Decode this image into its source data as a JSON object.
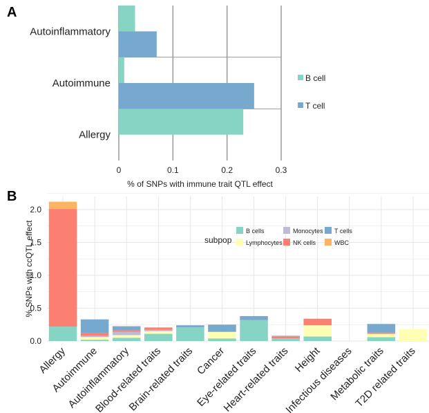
{
  "colors": {
    "b_cell": "#86d4c3",
    "t_cell": "#77a8cd",
    "lymphocytes": "#ffffb3",
    "monocytes": "#bebada",
    "nk_cells": "#fb8072",
    "wbc": "#fdb462",
    "grid_major": "#999999",
    "grid_light": "#e6e6e6"
  },
  "chart_data": [
    {
      "panel": "A",
      "type": "bar",
      "orientation": "horizontal",
      "categories": [
        "Autoinflammatory",
        "Autoimmune",
        "Allergy"
      ],
      "series": [
        {
          "name": "B cell",
          "values": [
            0.03,
            0.01,
            0.23
          ]
        },
        {
          "name": "T cell",
          "values": [
            0.07,
            0.25,
            0
          ]
        }
      ],
      "xlabel": "% of SNPs with immune trait QTL effect",
      "xlim": [
        0,
        0.3
      ],
      "xticks": [
        "0",
        "0.1",
        "0.2",
        "0.3"
      ],
      "legend_position": "right"
    },
    {
      "panel": "B",
      "type": "bar",
      "stacked": true,
      "categories": [
        "Allergy",
        "Autoimmune",
        "Autoinflammatory",
        "Blood-related traits",
        "Brain-related traits",
        "Cancer",
        "Eye-related traits",
        "Heart-related traits",
        "Height",
        "Infectious diseases",
        "Metabolic traits",
        "T2D related traits"
      ],
      "series": [
        {
          "name": "B cells",
          "values": [
            0.22,
            0.02,
            0.05,
            0.11,
            0.21,
            0.04,
            0.32,
            0.04,
            0.07,
            0,
            0.06,
            0
          ]
        },
        {
          "name": "Lymphocytes",
          "values": [
            0,
            0.04,
            0.04,
            0.04,
            0,
            0.1,
            0,
            0,
            0.17,
            0,
            0.05,
            0.18
          ]
        },
        {
          "name": "Monocytes",
          "values": [
            0,
            0.02,
            0.05,
            0.02,
            0,
            0,
            0,
            0,
            0,
            0,
            0,
            0
          ]
        },
        {
          "name": "NK cells",
          "values": [
            1.79,
            0.04,
            0.02,
            0.03,
            0,
            0,
            0,
            0.03,
            0.1,
            0,
            0.02,
            0
          ]
        },
        {
          "name": "T cells",
          "values": [
            0,
            0.21,
            0.06,
            0,
            0.03,
            0.11,
            0.06,
            0.01,
            0,
            0,
            0.13,
            0
          ]
        },
        {
          "name": "WBC",
          "values": [
            0.11,
            0,
            0.01,
            0.01,
            0,
            0,
            0,
            0,
            0,
            0,
            0,
            0
          ]
        }
      ],
      "ylabel": "% SNPs with ccQTL effect",
      "ylim": [
        0,
        2.2
      ],
      "yticks": [
        "0.0",
        "0.5",
        "1.0",
        "1.5",
        "2.0"
      ],
      "legend_title": "subpop",
      "legend_position": "inside-top"
    }
  ],
  "panels": {
    "a_label": "A",
    "b_label": "B"
  }
}
